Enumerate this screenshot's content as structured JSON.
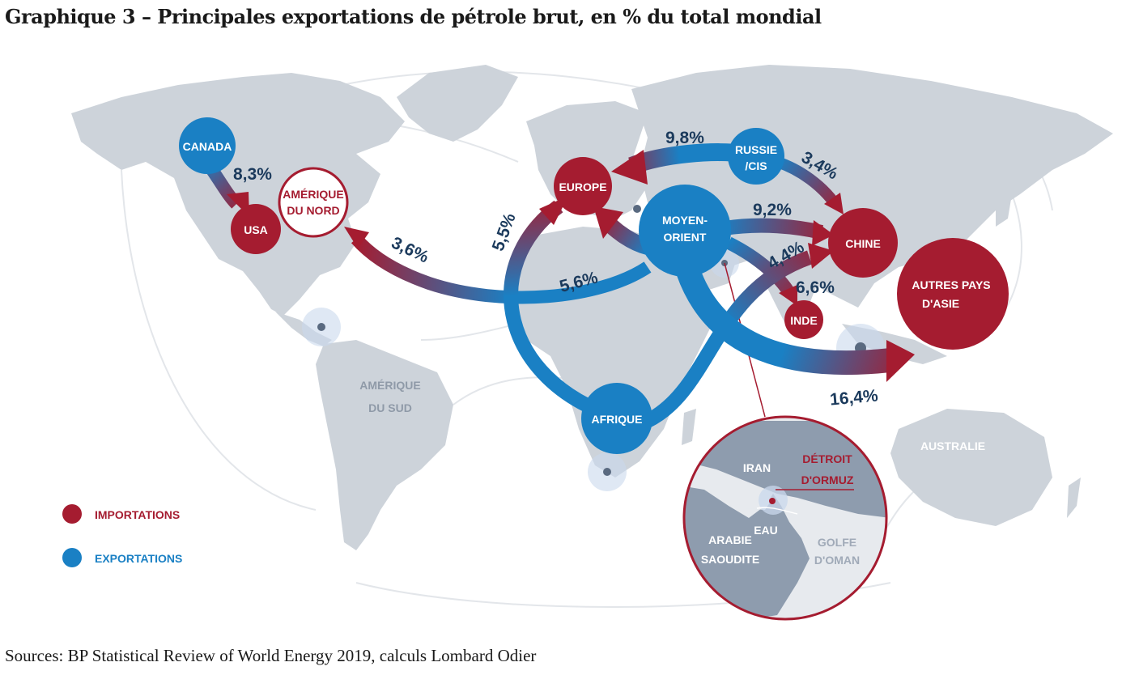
{
  "title": "Graphique 3 – Principales exportations de pétrole brut, en % du total mondial",
  "source": "Sources: BP Statistical Review of World Energy 2019, calculs Lombard Odier",
  "colors": {
    "import": "#a51c30",
    "export": "#1a80c4",
    "land": "#cdd3da",
    "percent_text": "#1b3a5c"
  },
  "nodes": {
    "canada": "CANADA",
    "usa": "USA",
    "amerique_nord": [
      "AMÉRIQUE",
      "DU NORD"
    ],
    "europe": "EUROPE",
    "russie": [
      "RUSSIE",
      "/CIS"
    ],
    "moyen_orient": [
      "MOYEN-",
      "ORIENT"
    ],
    "chine": "CHINE",
    "inde": "INDE",
    "autres_asie": [
      "AUTRES PAYS",
      "D'ASIE"
    ],
    "afrique": "AFRIQUE"
  },
  "regions": {
    "amerique_sud": [
      "AMÉRIQUE",
      "DU SUD"
    ],
    "australie": "AUSTRALIE"
  },
  "flows": {
    "canada_usa": "8,3%",
    "mo_amerique_nord": "3,6%",
    "mo_europe_label": "5,6%",
    "afrique_europe": "5,5%",
    "russie_europe": "9,8%",
    "russie_chine": "3,4%",
    "mo_chine": "9,2%",
    "afrique_chine": "4,4%",
    "mo_inde": "6,6%",
    "mo_asie": "16,4%"
  },
  "inset": {
    "iran": "IRAN",
    "detroit": [
      "DÉTROIT",
      "D'ORMUZ"
    ],
    "eau": "EAU",
    "arabie": [
      "ARABIE",
      "SAOUDITE"
    ],
    "golfe": [
      "GOLFE",
      "D'OMAN"
    ]
  },
  "legend": {
    "imports": "IMPORTATIONS",
    "exports": "EXPORTATIONS"
  }
}
